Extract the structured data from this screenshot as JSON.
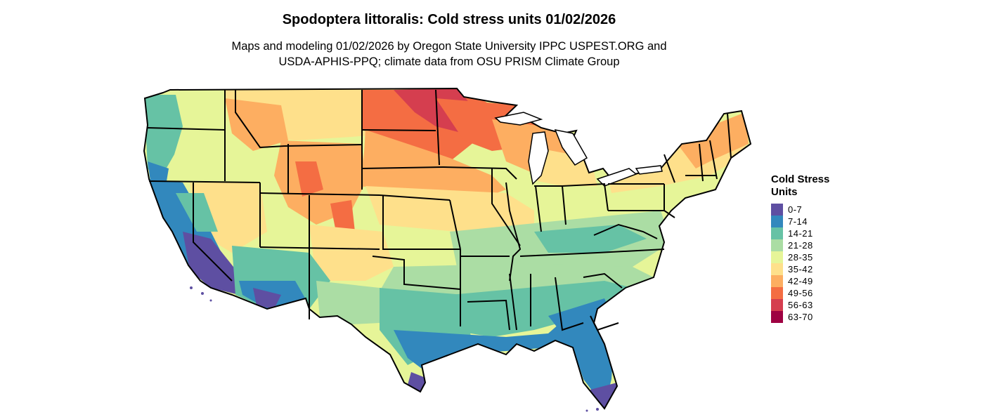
{
  "title": "Spodoptera littoralis: Cold stress units 01/02/2026",
  "subtitle_line1": "Maps and modeling 01/02/2026 by Oregon State University IPPC USPEST.ORG and",
  "subtitle_line2": "USDA-APHIS-PPQ; climate data from OSU PRISM Climate Group",
  "legend": {
    "title": "Cold Stress Units",
    "items": [
      {
        "label": "0-7",
        "color": "#5E4FA2"
      },
      {
        "label": "7-14",
        "color": "#3288BD"
      },
      {
        "label": "14-21",
        "color": "#66C2A5"
      },
      {
        "label": "21-28",
        "color": "#ABDDA4"
      },
      {
        "label": "28-35",
        "color": "#E6F598"
      },
      {
        "label": "35-42",
        "color": "#FEE08B"
      },
      {
        "label": "42-49",
        "color": "#FDAE61"
      },
      {
        "label": "49-56",
        "color": "#F46D43"
      },
      {
        "label": "56-63",
        "color": "#D53E4F"
      },
      {
        "label": "63-70",
        "color": "#9E0142"
      }
    ]
  }
}
